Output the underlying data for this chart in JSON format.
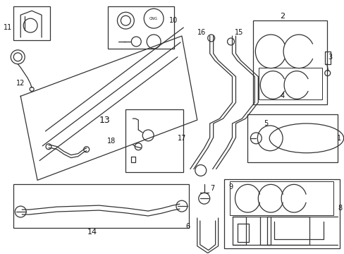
{
  "bg_color": "#ffffff",
  "line_color": "#333333",
  "lw": 0.9,
  "figsize": [
    4.89,
    3.6
  ],
  "dpi": 100
}
